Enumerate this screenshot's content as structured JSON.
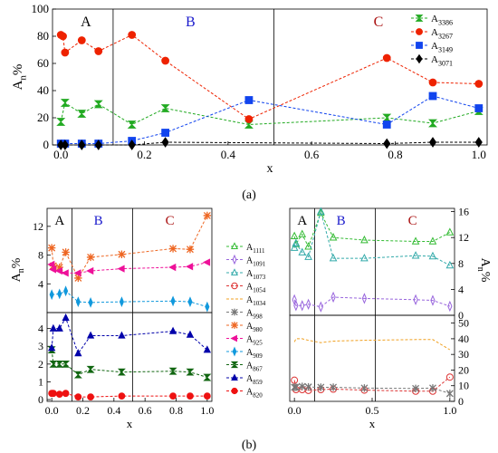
{
  "labels": {
    "a": "(a)",
    "b": "(b)"
  },
  "colors": {
    "A": "#000000",
    "B": "#1a1acc",
    "C": "#aa1111"
  },
  "chart_data": [
    {
      "id": "a",
      "type": "scatter",
      "title": "",
      "xlabel": "x",
      "ylabel": "A",
      "ylabel_sub": "n",
      "ylabel_suffix": "%",
      "xlim": [
        -0.02,
        1.02
      ],
      "ylim": [
        0,
        100
      ],
      "xticks": [
        0.0,
        0.2,
        0.4,
        0.6,
        0.8,
        1.0
      ],
      "xtick_labels": [
        "0.0",
        "0.2",
        "0.4",
        "0.6",
        "0.8",
        "1.0"
      ],
      "yticks": [
        0,
        20,
        40,
        60,
        80,
        100
      ],
      "ytick_labels": [
        "0",
        "20",
        "40",
        "60",
        "80",
        "100"
      ],
      "region_dividers": [
        0.125,
        0.51
      ],
      "region_labels": [
        {
          "text": "A",
          "x": 0.06,
          "color": "#000000"
        },
        {
          "text": "B",
          "x": 0.31,
          "color": "#1a1acc"
        },
        {
          "text": "C",
          "x": 0.76,
          "color": "#aa1111"
        }
      ],
      "legend": "top-right",
      "series": [
        {
          "name": "A",
          "sub": "3386",
          "color": "#22aa22",
          "marker": "hourglass",
          "open": false,
          "x": [
            0.0,
            0.01,
            0.05,
            0.09,
            0.17,
            0.25,
            0.45,
            0.78,
            0.89,
            1.0
          ],
          "y": [
            17,
            31,
            23,
            30,
            15,
            27,
            15,
            20,
            16,
            25
          ]
        },
        {
          "name": "A",
          "sub": "3267",
          "color": "#ee2200",
          "marker": "circle",
          "open": false,
          "x": [
            0.0,
            0.005,
            0.01,
            0.05,
            0.09,
            0.17,
            0.25,
            0.45,
            0.78,
            0.89,
            1.0
          ],
          "y": [
            81,
            80,
            68,
            77,
            69,
            81,
            62,
            19,
            64,
            46,
            45
          ]
        },
        {
          "name": "A",
          "sub": "3149",
          "color": "#1144ee",
          "marker": "square",
          "open": false,
          "x": [
            0.0,
            0.01,
            0.05,
            0.09,
            0.17,
            0.25,
            0.45,
            0.78,
            0.89,
            1.0
          ],
          "y": [
            1,
            1,
            1,
            1,
            3,
            9,
            33,
            15,
            36,
            27
          ]
        },
        {
          "name": "A",
          "sub": "3071",
          "color": "#000000",
          "marker": "diamond",
          "open": false,
          "x": [
            0.0,
            0.01,
            0.05,
            0.09,
            0.17,
            0.25,
            0.78,
            0.89,
            1.0
          ],
          "y": [
            0,
            0,
            0,
            0,
            0,
            2,
            1,
            2,
            2
          ]
        }
      ]
    },
    {
      "id": "b-left-top",
      "type": "scatter",
      "title": "",
      "xlabel": "",
      "ylabel": "A",
      "ylabel_sub": "n",
      "ylabel_suffix": "%",
      "xlim": [
        -0.03,
        1.03
      ],
      "ylim": [
        0,
        14.5
      ],
      "yticks": [
        4,
        8,
        12
      ],
      "ytick_labels": [
        "4",
        "8",
        "12"
      ],
      "region_dividers": [
        0.13,
        0.52
      ],
      "region_labels": [
        {
          "text": "A",
          "x": 0.05,
          "color": "#000000"
        },
        {
          "text": "B",
          "x": 0.3,
          "color": "#1a1acc"
        },
        {
          "text": "C",
          "x": 0.76,
          "color": "#aa1111"
        }
      ],
      "series": [
        {
          "name": "A",
          "sub": "980",
          "color": "#ee6622",
          "marker": "xstar",
          "open": false,
          "x": [
            0.0,
            0.01,
            0.05,
            0.09,
            0.17,
            0.25,
            0.45,
            0.78,
            0.89,
            1.0
          ],
          "y": [
            9.0,
            6.5,
            6.3,
            8.4,
            4.8,
            7.7,
            8.1,
            8.9,
            8.8,
            13.5
          ]
        },
        {
          "name": "A",
          "sub": "925",
          "color": "#ee1199",
          "marker": "triangle-left",
          "open": false,
          "x": [
            0.0,
            0.01,
            0.05,
            0.09,
            0.17,
            0.25,
            0.45,
            0.78,
            0.89,
            1.0
          ],
          "y": [
            6.7,
            6.0,
            5.8,
            5.5,
            5.5,
            5.8,
            6.1,
            6.3,
            6.4,
            7.0
          ]
        },
        {
          "name": "A",
          "sub": "909",
          "color": "#1199dd",
          "marker": "thin-diamond",
          "open": false,
          "x": [
            0.0,
            0.05,
            0.09,
            0.17,
            0.25,
            0.45,
            0.78,
            0.89,
            1.0
          ],
          "y": [
            2.5,
            2.6,
            3.0,
            1.5,
            1.4,
            1.5,
            1.6,
            1.5,
            0.8
          ]
        }
      ]
    },
    {
      "id": "b-left-bottom",
      "type": "scatter",
      "title": "",
      "xlabel": "x",
      "ylabel": "",
      "xlim": [
        -0.03,
        1.03
      ],
      "ylim": [
        -0.1,
        4.9
      ],
      "xticks": [
        0.0,
        0.2,
        0.4,
        0.6,
        0.8,
        1.0
      ],
      "xtick_labels": [
        "0.0",
        "0.2",
        "0.4",
        "0.6",
        "0.8",
        "1.0"
      ],
      "yticks": [
        0,
        1,
        2,
        3,
        4
      ],
      "ytick_labels": [
        "0",
        "1",
        "2",
        "3",
        "4"
      ],
      "region_dividers": [
        0.13,
        0.52
      ],
      "series": [
        {
          "name": "A",
          "sub": "867",
          "color": "#116611",
          "marker": "hourglass",
          "open": false,
          "x": [
            0.0,
            0.01,
            0.05,
            0.09,
            0.17,
            0.25,
            0.45,
            0.78,
            0.89,
            1.0
          ],
          "y": [
            2.8,
            2.0,
            2.0,
            2.0,
            1.4,
            1.7,
            1.55,
            1.6,
            1.55,
            1.25
          ]
        },
        {
          "name": "A",
          "sub": "859",
          "color": "#0000aa",
          "marker": "triangle",
          "open": false,
          "x": [
            0.0,
            0.01,
            0.05,
            0.09,
            0.17,
            0.25,
            0.45,
            0.78,
            0.89,
            1.0
          ],
          "y": [
            2.9,
            4.0,
            4.0,
            4.6,
            2.6,
            3.6,
            3.6,
            3.85,
            3.65,
            2.8
          ]
        },
        {
          "name": "A",
          "sub": "820",
          "color": "#ee1111",
          "marker": "circle",
          "open": false,
          "x": [
            0.0,
            0.01,
            0.05,
            0.09,
            0.17,
            0.25,
            0.45,
            0.78,
            0.89,
            1.0
          ],
          "y": [
            0.35,
            0.35,
            0.3,
            0.35,
            0.15,
            0.15,
            0.2,
            0.2,
            0.2,
            0.2
          ]
        }
      ]
    },
    {
      "id": "b-right-top",
      "type": "scatter",
      "title": "",
      "xlabel": "",
      "ylabel": "A",
      "ylabel_sub": "n",
      "ylabel_suffix": "%",
      "xlim": [
        -0.03,
        1.03
      ],
      "ylim": [
        0,
        16.5
      ],
      "yticks": [
        0,
        4,
        8,
        12,
        16
      ],
      "ytick_labels": [
        "0",
        "4",
        "8",
        "12",
        "16"
      ],
      "region_dividers": [
        0.13,
        0.52
      ],
      "region_labels": [
        {
          "text": "A",
          "x": 0.05,
          "color": "#000000"
        },
        {
          "text": "B",
          "x": 0.3,
          "color": "#1a1acc"
        },
        {
          "text": "C",
          "x": 0.76,
          "color": "#aa1111"
        }
      ],
      "series": [
        {
          "name": "A",
          "sub": "1111",
          "color": "#33bb33",
          "marker": "triangle",
          "open": true,
          "x": [
            0.0,
            0.01,
            0.05,
            0.09,
            0.17,
            0.25,
            0.45,
            0.78,
            0.89,
            1.0
          ],
          "y": [
            12.2,
            11.0,
            12.5,
            10.6,
            15.8,
            12.0,
            11.6,
            11.4,
            11.4,
            12.8
          ]
        },
        {
          "name": "A",
          "sub": "1073",
          "color": "#33aaaa",
          "marker": "triangle",
          "open": true,
          "x": [
            0.0,
            0.01,
            0.05,
            0.09,
            0.17,
            0.25,
            0.45,
            0.78,
            0.89,
            1.0
          ],
          "y": [
            10.4,
            11.1,
            9.7,
            9.0,
            16.0,
            8.8,
            8.8,
            9.2,
            9.1,
            7.7
          ]
        },
        {
          "name": "A",
          "sub": "1091",
          "color": "#9966dd",
          "marker": "thin-diamond",
          "open": true,
          "x": [
            0.0,
            0.01,
            0.05,
            0.09,
            0.17,
            0.25,
            0.45,
            0.78,
            0.89,
            1.0
          ],
          "y": [
            2.4,
            1.5,
            1.5,
            1.7,
            1.3,
            2.8,
            2.6,
            2.4,
            2.3,
            1.4
          ]
        }
      ]
    },
    {
      "id": "b-right-bottom",
      "type": "scatter",
      "title": "",
      "xlabel": "x",
      "ylabel": "",
      "xlim": [
        -0.03,
        1.03
      ],
      "ylim": [
        0,
        55
      ],
      "xticks": [
        0.0,
        0.5,
        1.0
      ],
      "xtick_labels": [
        "0.0",
        "0.5",
        "1.0"
      ],
      "yticks": [
        0,
        10,
        20,
        30,
        40,
        50
      ],
      "ytick_labels": [
        "0",
        "10",
        "20",
        "30",
        "40",
        "50"
      ],
      "region_dividers": [
        0.13,
        0.52
      ],
      "series": [
        {
          "name": "A",
          "sub": "1034",
          "color": "#f0a020",
          "marker": "none",
          "open": true,
          "x": [
            0.0,
            0.01,
            0.05,
            0.09,
            0.17,
            0.25,
            0.45,
            0.78,
            0.89,
            1.0
          ],
          "y": [
            38.0,
            40.0,
            40.0,
            39.0,
            37.5,
            38.5,
            39.0,
            39.5,
            39.5,
            33.0
          ]
        },
        {
          "name": "A",
          "sub": "1054",
          "color": "#dd3333",
          "marker": "circle",
          "open": true,
          "x": [
            0.0,
            0.01,
            0.05,
            0.09,
            0.17,
            0.25,
            0.45,
            0.78,
            0.89,
            1.0
          ],
          "y": [
            13.5,
            7.5,
            7.5,
            7.0,
            7.5,
            7.8,
            7.2,
            6.5,
            6.5,
            15.5
          ]
        },
        {
          "name": "A",
          "sub": "998",
          "color": "#777777",
          "marker": "asterisk",
          "open": true,
          "x": [
            0.0,
            0.01,
            0.05,
            0.09,
            0.17,
            0.25,
            0.45,
            0.78,
            0.89,
            1.0
          ],
          "y": [
            9.0,
            9.0,
            9.5,
            9.2,
            9.0,
            9.0,
            8.5,
            8.2,
            8.5,
            5.0
          ]
        }
      ]
    }
  ],
  "legend_b": [
    {
      "name": "A",
      "sub": "1111",
      "color": "#33bb33",
      "marker": "triangle",
      "open": true
    },
    {
      "name": "A",
      "sub": "1091",
      "color": "#9966dd",
      "marker": "thin-diamond",
      "open": true
    },
    {
      "name": "A",
      "sub": "1073",
      "color": "#33aaaa",
      "marker": "triangle",
      "open": true
    },
    {
      "name": "A",
      "sub": "1054",
      "color": "#dd3333",
      "marker": "circle",
      "open": true
    },
    {
      "name": "A",
      "sub": "1034",
      "color": "#f0a020",
      "marker": "none",
      "open": true
    },
    {
      "name": "A",
      "sub": "998",
      "color": "#777777",
      "marker": "asterisk",
      "open": true
    },
    {
      "name": "A",
      "sub": "980",
      "color": "#ee6622",
      "marker": "xstar",
      "open": false
    },
    {
      "name": "A",
      "sub": "925",
      "color": "#ee1199",
      "marker": "triangle-left",
      "open": false
    },
    {
      "name": "A",
      "sub": "909",
      "color": "#1199dd",
      "marker": "thin-diamond",
      "open": false
    },
    {
      "name": "A",
      "sub": "867",
      "color": "#116611",
      "marker": "hourglass",
      "open": false
    },
    {
      "name": "A",
      "sub": "859",
      "color": "#0000aa",
      "marker": "triangle",
      "open": false
    },
    {
      "name": "A",
      "sub": "820",
      "color": "#ee1111",
      "marker": "circle",
      "open": false
    }
  ]
}
